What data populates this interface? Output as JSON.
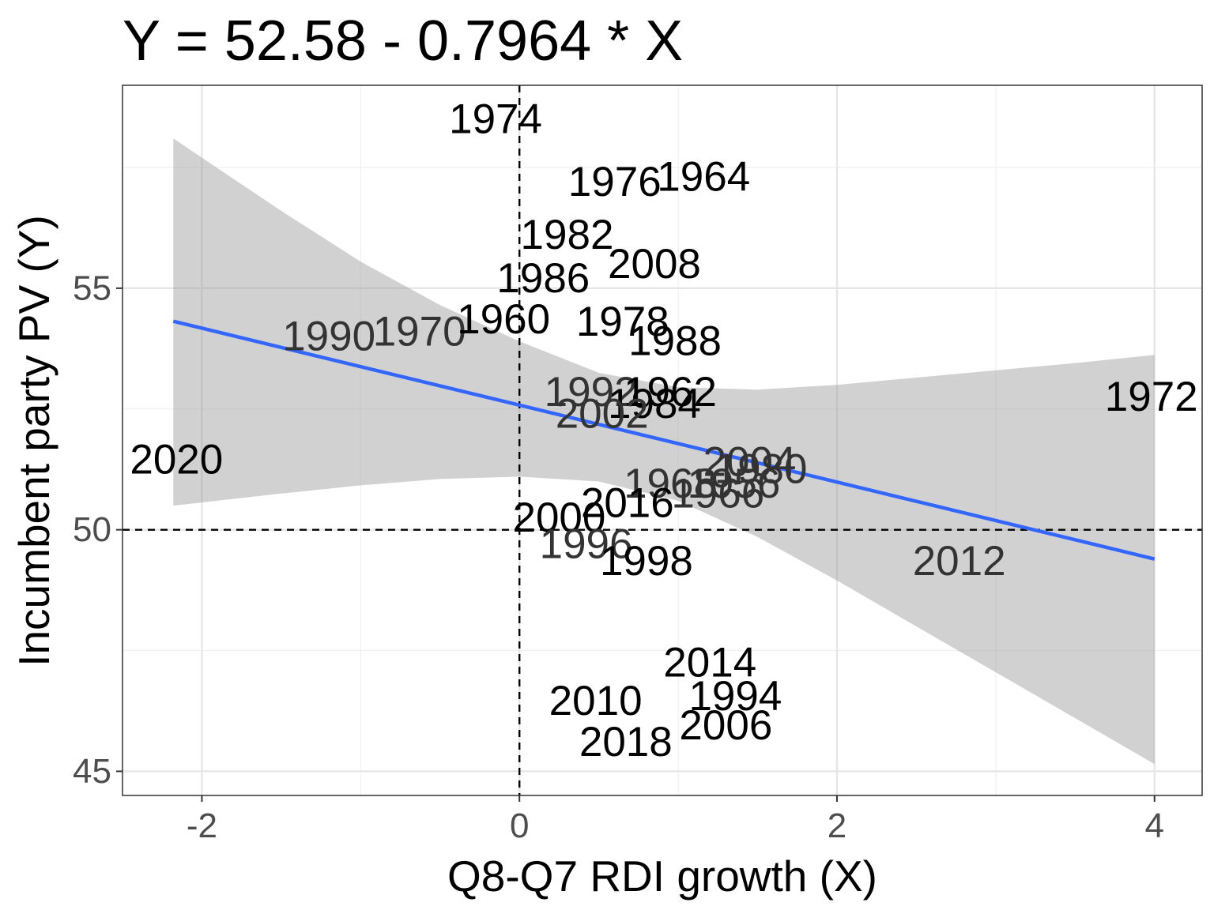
{
  "chart_data": {
    "type": "scatter",
    "title": "Y = 52.58 - 0.7964  * X",
    "xlabel": "Q8-Q7 RDI growth (X)",
    "ylabel": "Incumbent party PV (Y)",
    "xlim": [
      -2.5,
      4.3
    ],
    "ylim": [
      44.5,
      59.2
    ],
    "x_ticks": [
      -2,
      0,
      2,
      4
    ],
    "x_tick_labels": [
      "-2",
      "0",
      "2",
      "4"
    ],
    "y_ticks": [
      45,
      50,
      55
    ],
    "y_tick_labels": [
      "45",
      "50",
      "55"
    ],
    "grid": true,
    "reference_lines": {
      "x": 0,
      "y": 50,
      "style": "dashed"
    },
    "regression": {
      "intercept": 52.58,
      "slope": -0.7964,
      "x_range": [
        -2.18,
        4.0
      ],
      "color": "#3366FF"
    },
    "confidence_band": {
      "color": "#999999",
      "x": [
        -2.18,
        -1.5,
        -1.0,
        -0.5,
        0.0,
        0.5,
        1.0,
        1.5,
        2.0,
        2.5,
        3.0,
        3.5,
        4.0
      ],
      "lower": [
        50.5,
        50.75,
        50.92,
        51.05,
        51.1,
        51.0,
        50.6,
        49.85,
        48.95,
        48.0,
        47.05,
        46.1,
        45.15
      ],
      "upper": [
        58.1,
        56.6,
        55.55,
        54.65,
        53.9,
        53.25,
        52.95,
        52.9,
        53.0,
        53.15,
        53.3,
        53.45,
        53.62
      ]
    },
    "points": [
      {
        "label": "1974",
        "x": -0.15,
        "y": 58.5,
        "color": "#000000"
      },
      {
        "label": "1976",
        "x": 0.6,
        "y": 57.2,
        "color": "#000000"
      },
      {
        "label": "1964",
        "x": 1.16,
        "y": 57.3,
        "color": "#000000"
      },
      {
        "label": "1982",
        "x": 0.3,
        "y": 56.1,
        "color": "#000000"
      },
      {
        "label": "2008",
        "x": 0.85,
        "y": 55.5,
        "color": "#000000"
      },
      {
        "label": "1986",
        "x": 0.15,
        "y": 55.2,
        "color": "#000000"
      },
      {
        "label": "1990",
        "x": -1.2,
        "y": 54.0,
        "color": "#333333"
      },
      {
        "label": "1970",
        "x": -0.63,
        "y": 54.1,
        "color": "#333333"
      },
      {
        "label": "1960",
        "x": -0.1,
        "y": 54.35,
        "color": "#000000"
      },
      {
        "label": "1978",
        "x": 0.65,
        "y": 54.3,
        "color": "#000000"
      },
      {
        "label": "1988",
        "x": 0.98,
        "y": 53.9,
        "color": "#000000"
      },
      {
        "label": "1992",
        "x": 0.45,
        "y": 52.85,
        "color": "#333333"
      },
      {
        "label": "1962",
        "x": 0.95,
        "y": 52.85,
        "color": "#000000"
      },
      {
        "label": "1984",
        "x": 0.85,
        "y": 52.6,
        "color": "#000000"
      },
      {
        "label": "2002",
        "x": 0.52,
        "y": 52.4,
        "color": "#333333"
      },
      {
        "label": "1972",
        "x": 3.98,
        "y": 52.75,
        "color": "#000000"
      },
      {
        "label": "2020",
        "x": -2.16,
        "y": 51.45,
        "color": "#000000"
      },
      {
        "label": "2004",
        "x": 1.45,
        "y": 51.4,
        "color": "#333333"
      },
      {
        "label": "1980",
        "x": 1.52,
        "y": 51.25,
        "color": "#333333"
      },
      {
        "label": "1968",
        "x": 0.95,
        "y": 50.95,
        "color": "#333333"
      },
      {
        "label": "1956",
        "x": 1.35,
        "y": 50.95,
        "color": "#333333"
      },
      {
        "label": "1966",
        "x": 1.25,
        "y": 50.75,
        "color": "#333333"
      },
      {
        "label": "2016",
        "x": 0.68,
        "y": 50.55,
        "color": "#000000"
      },
      {
        "label": "2000",
        "x": 0.25,
        "y": 50.25,
        "color": "#000000"
      },
      {
        "label": "1996",
        "x": 0.42,
        "y": 49.7,
        "color": "#333333"
      },
      {
        "label": "1998",
        "x": 0.8,
        "y": 49.35,
        "color": "#000000"
      },
      {
        "label": "2012",
        "x": 2.77,
        "y": 49.35,
        "color": "#333333"
      },
      {
        "label": "2014",
        "x": 1.2,
        "y": 47.25,
        "color": "#000000"
      },
      {
        "label": "1994",
        "x": 1.36,
        "y": 46.55,
        "color": "#000000"
      },
      {
        "label": "2010",
        "x": 0.48,
        "y": 46.45,
        "color": "#000000"
      },
      {
        "label": "2006",
        "x": 1.3,
        "y": 45.95,
        "color": "#000000"
      },
      {
        "label": "2018",
        "x": 0.67,
        "y": 45.6,
        "color": "#000000"
      }
    ]
  }
}
